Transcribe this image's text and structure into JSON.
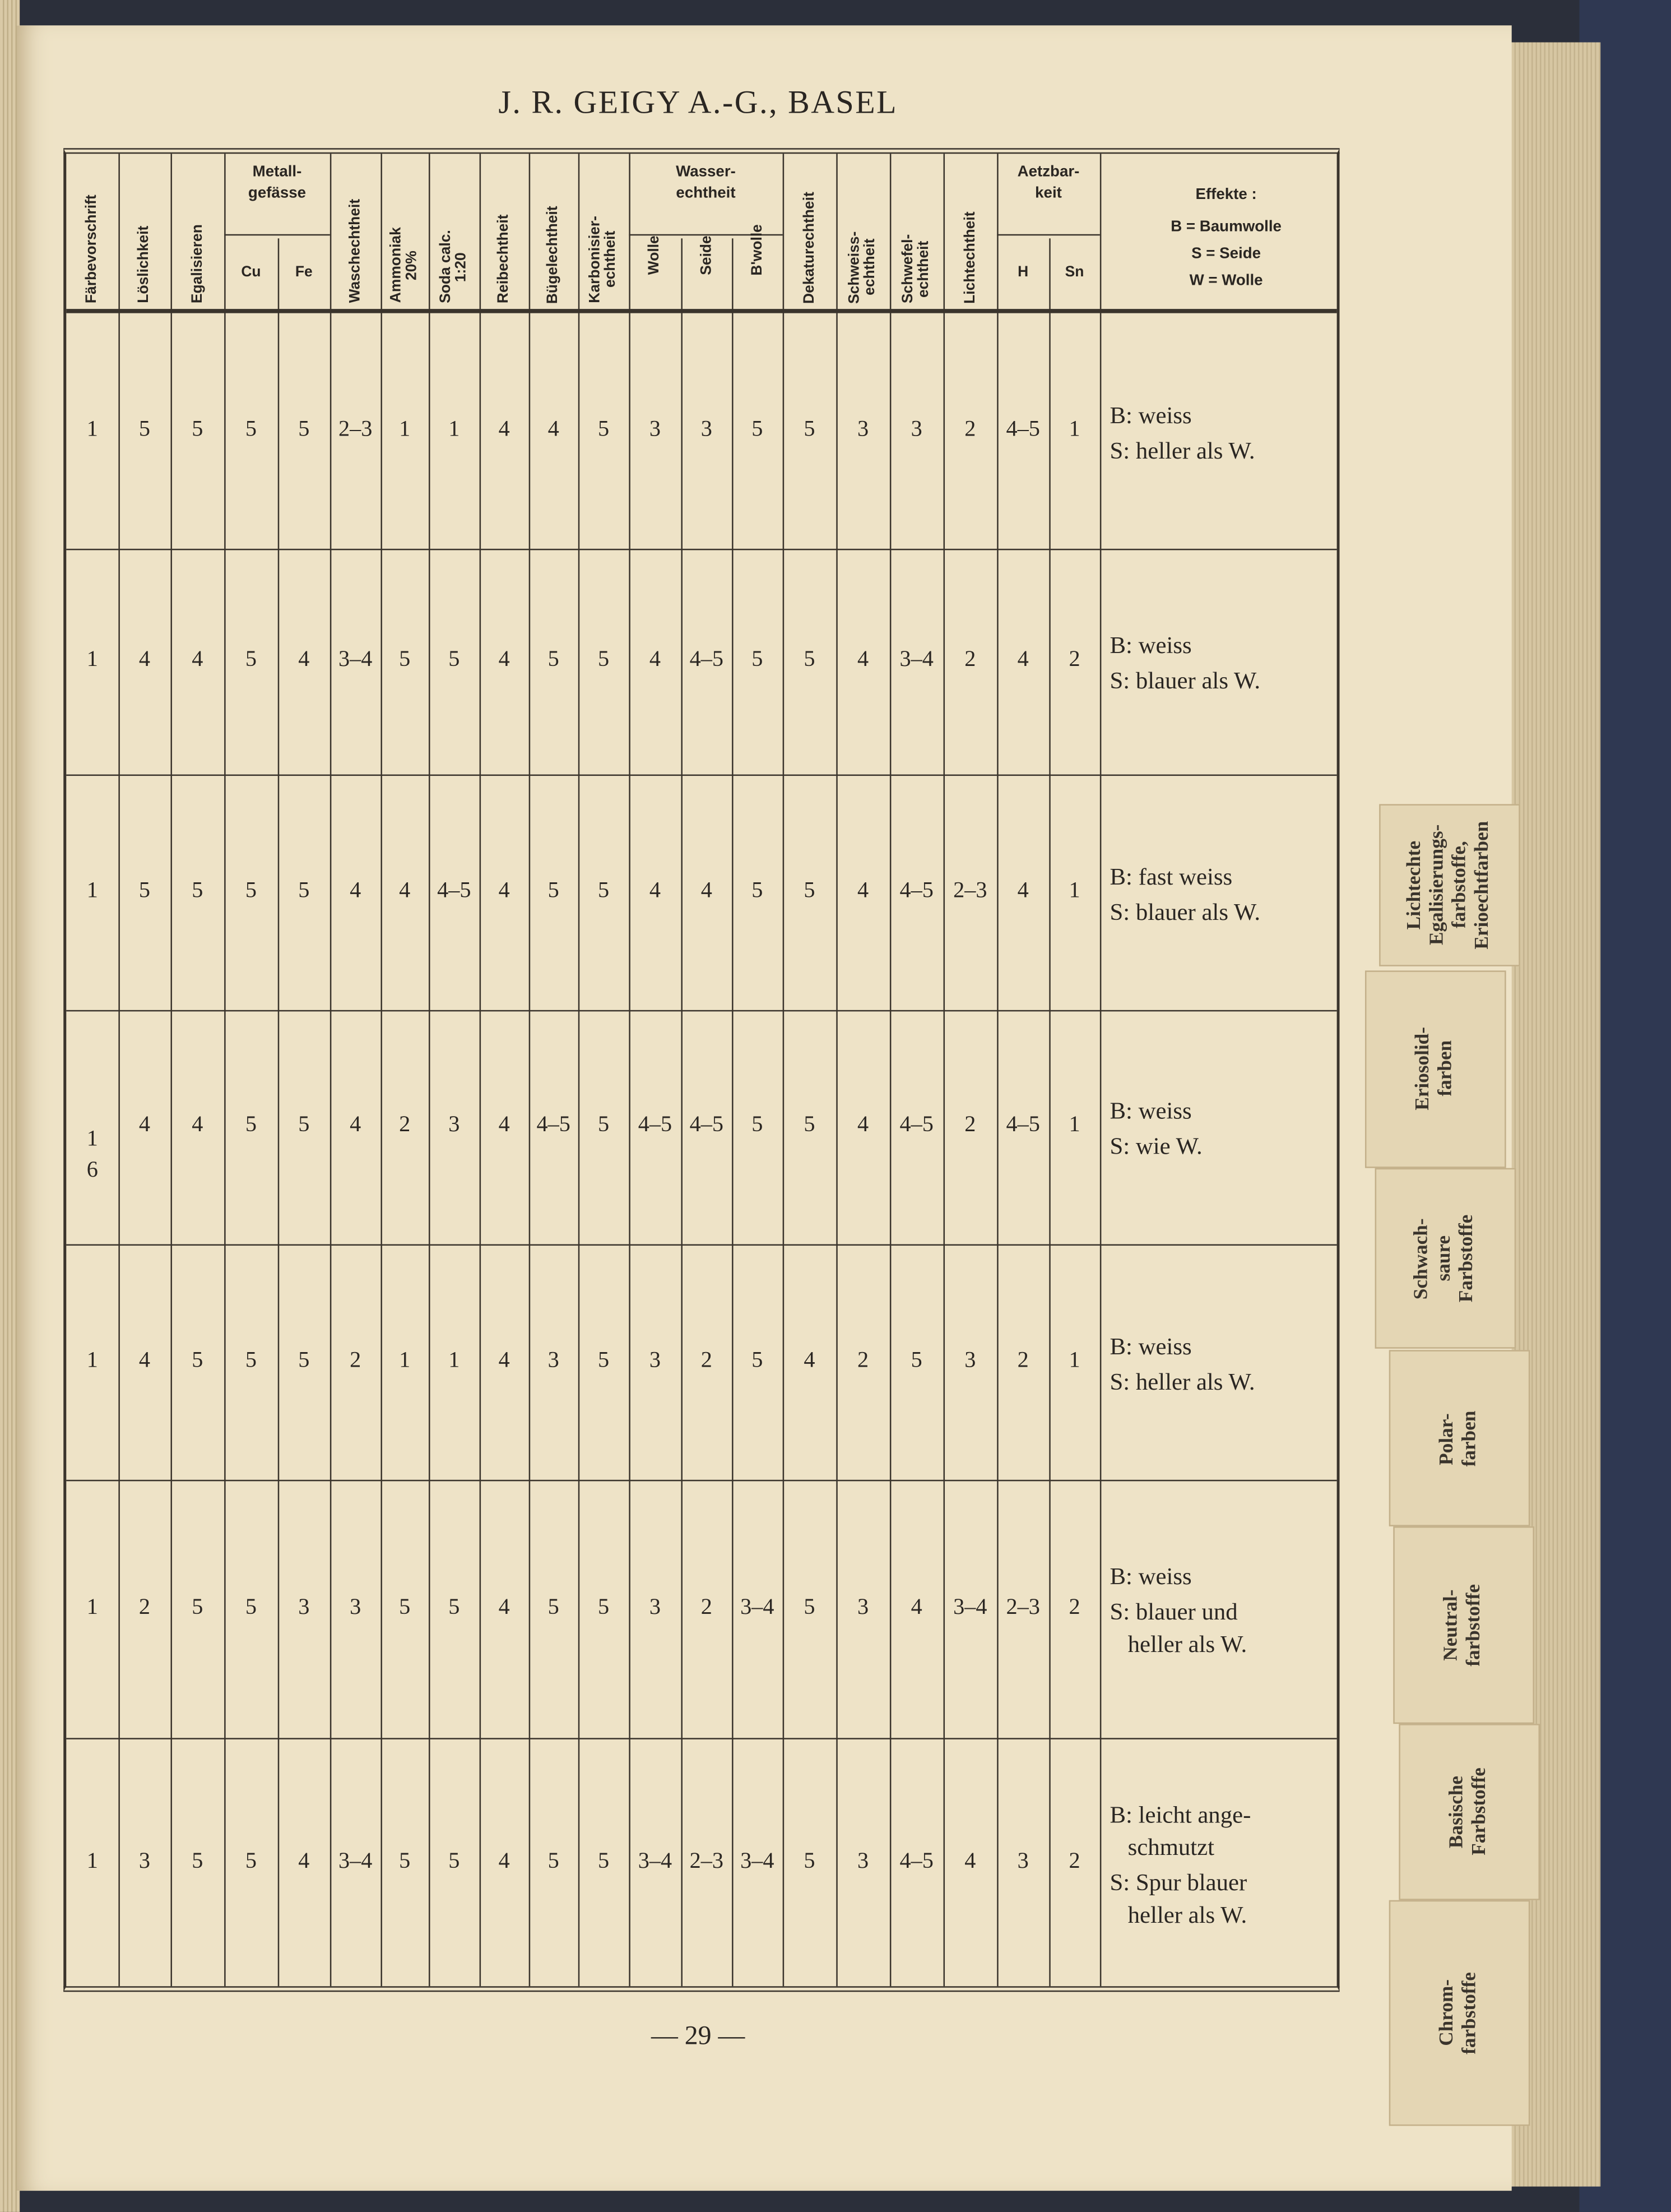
{
  "header": {
    "title": "J. R. GEIGY A.-G., BASEL"
  },
  "columns": [
    {
      "label": "Färbevorschrift"
    },
    {
      "label": "Löslichkeit"
    },
    {
      "label": "Egalisieren"
    },
    {
      "label": "Cu",
      "group": "Metall-\ngefässe"
    },
    {
      "label": "Fe",
      "group": "Metall-\ngefässe"
    },
    {
      "label": "Waschechtheit"
    },
    {
      "label": "Ammoniak\n20%"
    },
    {
      "label": "Soda calc.\n1:20"
    },
    {
      "label": "Reibechtheit"
    },
    {
      "label": "Bügelechtheit"
    },
    {
      "label": "Karbonisier-\nechtheit"
    },
    {
      "label": "Wolle",
      "group": "Wasser-\nechtheit"
    },
    {
      "label": "Seide",
      "group": "Wasser-\nechtheit"
    },
    {
      "label": "B'wolle",
      "group": "Wasser-\nechtheit"
    },
    {
      "label": "Dekaturechtheit"
    },
    {
      "label": "Schweiss-\nechtheit"
    },
    {
      "label": "Schwefel-\nechtheit"
    },
    {
      "label": "Lichtechtheit"
    },
    {
      "label": "H",
      "group": "Aetzbar-\nkeit"
    },
    {
      "label": "Sn",
      "group": "Aetzbar-\nkeit"
    }
  ],
  "groups": {
    "metall": "Metall-\ngefässe",
    "wasser": "Wasser-\nechtheit",
    "aetz": "Aetzbar-\nkeit"
  },
  "effekte_header": {
    "title": "Effekte :",
    "b": "B = Baumwolle",
    "s": "S = Seide",
    "w": "W = Wolle"
  },
  "rows": [
    {
      "values": [
        "1",
        "5",
        "5",
        "5",
        "5",
        "2–3",
        "1",
        "1",
        "4",
        "4",
        "5",
        "3",
        "3",
        "5",
        "5",
        "3",
        "3",
        "2",
        "4–5",
        "1"
      ],
      "effekte": [
        "B: weiss",
        "S: heller als W."
      ]
    },
    {
      "values": [
        "1",
        "4",
        "4",
        "5",
        "4",
        "3–4",
        "5",
        "5",
        "4",
        "5",
        "5",
        "4",
        "4–5",
        "5",
        "5",
        "4",
        "3–4",
        "2",
        "4",
        "2"
      ],
      "effekte": [
        "B: weiss",
        "S: blauer als W."
      ]
    },
    {
      "values": [
        "1",
        "5",
        "5",
        "5",
        "5",
        "4",
        "4",
        "4–5",
        "4",
        "5",
        "5",
        "4",
        "4",
        "5",
        "5",
        "4",
        "4–5",
        "2–3",
        "4",
        "1"
      ],
      "effekte": [
        "B: fast weiss",
        "S: blauer als W."
      ]
    },
    {
      "values": [
        "1\n6",
        "4",
        "4",
        "5",
        "5",
        "4",
        "2",
        "3",
        "4",
        "4–5",
        "5",
        "4–5",
        "4–5",
        "5",
        "5",
        "4",
        "4–5",
        "2",
        "4–5",
        "1"
      ],
      "effekte": [
        "B: weiss",
        "S: wie W."
      ]
    },
    {
      "values": [
        "1",
        "4",
        "5",
        "5",
        "5",
        "2",
        "1",
        "1",
        "4",
        "3",
        "5",
        "3",
        "2",
        "5",
        "4",
        "2",
        "5",
        "3",
        "2",
        "1"
      ],
      "effekte": [
        "B: weiss",
        "S: heller als W."
      ]
    },
    {
      "values": [
        "1",
        "2",
        "5",
        "5",
        "3",
        "3",
        "5",
        "5",
        "4",
        "5",
        "5",
        "3",
        "2",
        "3–4",
        "5",
        "3",
        "4",
        "3–4",
        "2–3",
        "2"
      ],
      "effekte": [
        "B: weiss",
        "S: blauer und\n   heller als W."
      ]
    },
    {
      "values": [
        "1",
        "3",
        "5",
        "5",
        "4",
        "3–4",
        "5",
        "5",
        "4",
        "5",
        "5",
        "3–4",
        "2–3",
        "3–4",
        "5",
        "3",
        "4–5",
        "4",
        "3",
        "2"
      ],
      "effekte": [
        "B: leicht ange-\n   schmutzt",
        "S: Spur blauer\n   heller als W."
      ]
    }
  ],
  "footer": {
    "page_number": "— 29 —"
  },
  "index_tabs": [
    "Lichtechte\nEgalisierungs-\nfarbstoffe,\nErioechtfarben",
    "Eriosolid-\nfarben",
    "Schwach-\nsaure\nFarbstoffe",
    "Polar-\nfarben",
    "Neutral-\nfarbstoffe",
    "Basische\nFarbstoffe",
    "Chrom-\nfarbstoffe"
  ]
}
